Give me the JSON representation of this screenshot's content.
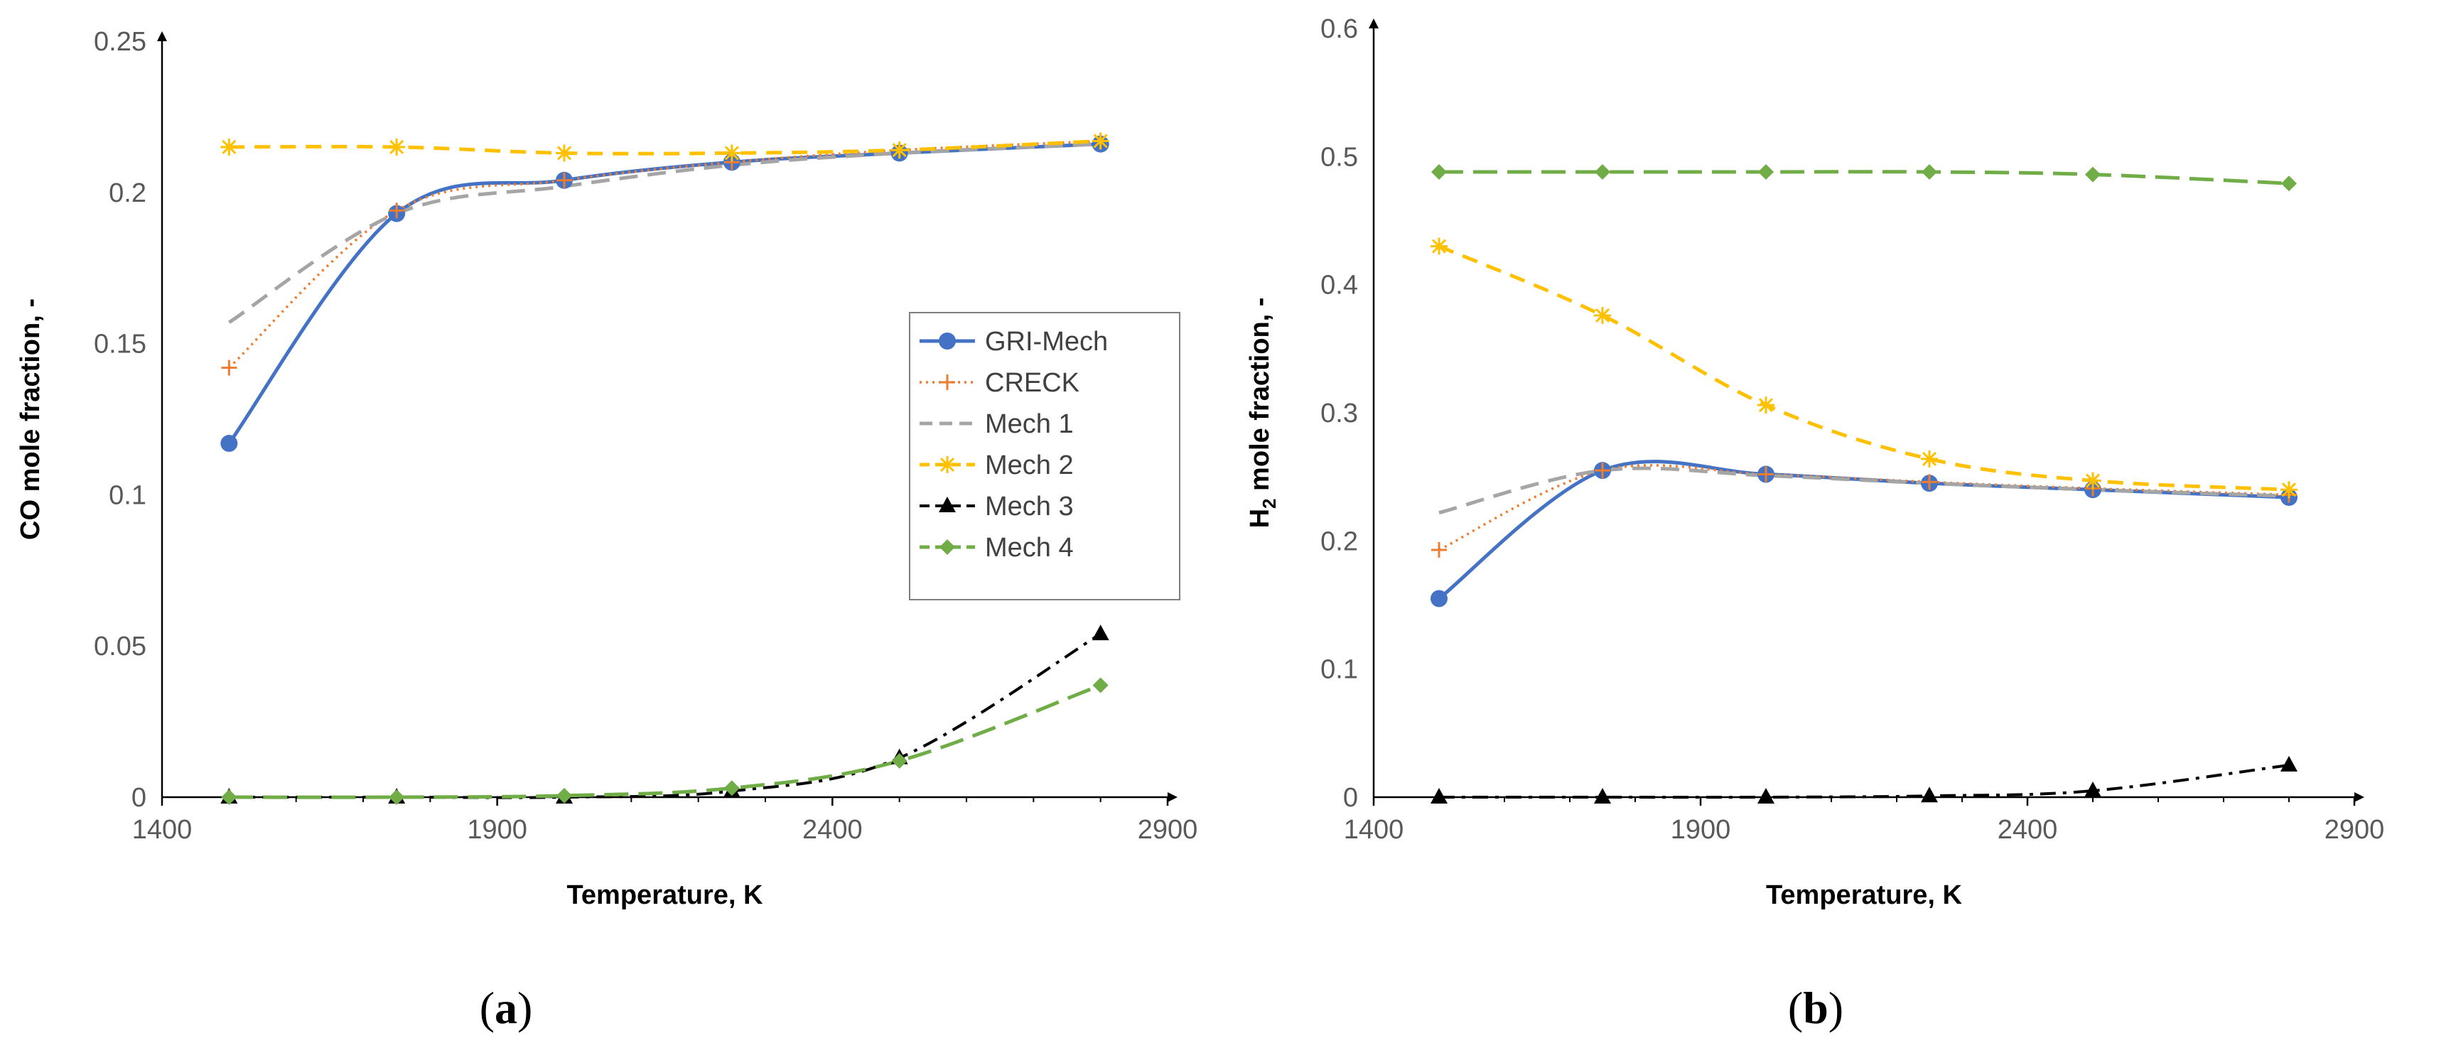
{
  "colors": {
    "GRI-Mech": "#4472C4",
    "CRECK": "#ED7D31",
    "Mech 1": "#A5A5A5",
    "Mech 2": "#FFC000",
    "Mech 3": "#000000",
    "Mech 4": "#70AD47",
    "axis": "#000000",
    "tick_text": "#595959"
  },
  "chart_data": [
    {
      "type": "line",
      "panel_label": {
        "open": "(",
        "letter": "a",
        "close": ")"
      },
      "xlabel": "Temperature, K",
      "ylabel": "CO mole fraction, -",
      "xlim": [
        1400,
        2900
      ],
      "ylim": [
        0,
        0.25
      ],
      "xticks": [
        1400,
        1900,
        2400,
        2900
      ],
      "yticks": [
        0,
        0.05,
        0.1,
        0.15,
        0.2,
        0.25
      ],
      "ytick_labels": [
        "0",
        "0.05",
        "0.1",
        "0.15",
        "0.2",
        "0.25"
      ],
      "legend": {
        "position": "right-middle",
        "entries": [
          "GRI-Mech",
          "CRECK",
          "Mech 1",
          "Mech 2",
          "Mech 3",
          "Mech 4"
        ]
      },
      "x": [
        1500,
        1750,
        2000,
        2250,
        2500,
        2800
      ],
      "series": [
        {
          "name": "GRI-Mech",
          "values": [
            0.117,
            0.193,
            0.204,
            0.21,
            0.213,
            0.216
          ]
        },
        {
          "name": "CRECK",
          "values": [
            0.142,
            0.194,
            0.204,
            0.21,
            0.214,
            0.217
          ]
        },
        {
          "name": "Mech 1",
          "values": [
            0.157,
            0.193,
            0.202,
            0.209,
            0.213,
            0.216
          ]
        },
        {
          "name": "Mech 2",
          "values": [
            0.215,
            0.215,
            0.213,
            0.213,
            0.214,
            0.217
          ]
        },
        {
          "name": "Mech 3",
          "values": [
            0.0,
            0.0,
            0.0,
            0.002,
            0.013,
            0.054
          ]
        },
        {
          "name": "Mech 4",
          "values": [
            0.0,
            0.0,
            0.0005,
            0.003,
            0.012,
            0.037
          ]
        }
      ]
    },
    {
      "type": "line",
      "panel_label": {
        "open": "(",
        "letter": "b",
        "close": ")"
      },
      "xlabel": "Temperature, K",
      "ylabel_main": "H",
      "ylabel_sub": "2",
      "ylabel_rest": " mole fraction, -",
      "xlim": [
        1400,
        2900
      ],
      "ylim": [
        0,
        0.6
      ],
      "xticks": [
        1400,
        1900,
        2400,
        2900
      ],
      "yticks": [
        0,
        0.1,
        0.2,
        0.3,
        0.4,
        0.5,
        0.6
      ],
      "ytick_labels": [
        "0",
        "0.1",
        "0.2",
        "0.3",
        "0.4",
        "0.5",
        "0.6"
      ],
      "x": [
        1500,
        1750,
        2000,
        2250,
        2500,
        2800
      ],
      "series": [
        {
          "name": "GRI-Mech",
          "values": [
            0.155,
            0.255,
            0.252,
            0.245,
            0.24,
            0.234
          ]
        },
        {
          "name": "CRECK",
          "values": [
            0.193,
            0.255,
            0.252,
            0.246,
            0.241,
            0.236
          ]
        },
        {
          "name": "Mech 1",
          "values": [
            0.222,
            0.255,
            0.251,
            0.245,
            0.24,
            0.235
          ]
        },
        {
          "name": "Mech 2",
          "values": [
            0.43,
            0.376,
            0.306,
            0.264,
            0.247,
            0.24
          ]
        },
        {
          "name": "Mech 3",
          "values": [
            0.0,
            0.0,
            0.0,
            0.001,
            0.005,
            0.025
          ]
        },
        {
          "name": "Mech 4",
          "values": [
            0.488,
            0.488,
            0.488,
            0.488,
            0.486,
            0.479
          ]
        }
      ]
    }
  ]
}
